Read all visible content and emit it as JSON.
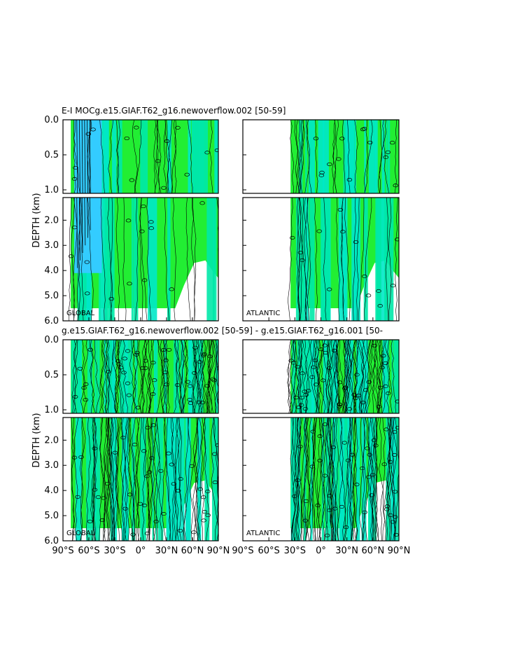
{
  "figure": {
    "title_top": "E-I MOCg.e15.GIAF.T62_g16.newoverflow.002  [50-59]",
    "title_bottom": "g.e15.GIAF.T62_g16.newoverflow.002  [50-59] - g.e15.GIAF.T62_g16.001  [50-"
  },
  "colors": {
    "green": "#22ee33",
    "bright_green": "#33f41f",
    "cyan_green": "#00e8a8",
    "teal": "#00e8c8",
    "light_blue": "#33ccff",
    "contour": "#000000",
    "frame": "#000000"
  },
  "chart_data": [
    {
      "type": "heatmap",
      "panel": "top-left",
      "basin_label": "GLOBAL",
      "ylabel": "DEPTH (km)",
      "upper_ticks": [
        "0.0",
        "0.5",
        "1.0"
      ],
      "lower_ticks": [
        "2.0",
        "3.0",
        "4.0",
        "5.0",
        "6.0"
      ],
      "x_ticks": []
    },
    {
      "type": "heatmap",
      "panel": "top-right",
      "basin_label": "ATLANTIC",
      "upper_ticks": [],
      "lower_ticks": [],
      "x_ticks": []
    },
    {
      "type": "heatmap",
      "panel": "bottom-left",
      "basin_label": "GLOBAL",
      "ylabel": "DEPTH (km)",
      "upper_ticks": [
        "0.0",
        "0.5",
        "1.0"
      ],
      "lower_ticks": [
        "2.0",
        "3.0",
        "4.0",
        "5.0",
        "6.0"
      ],
      "x_ticks": [
        "90°S",
        "60°S",
        "30°S",
        "0°",
        "30°N",
        "60°N",
        "90°N"
      ]
    },
    {
      "type": "heatmap",
      "panel": "bottom-right",
      "basin_label": "ATLANTIC",
      "upper_ticks": [],
      "lower_ticks": [],
      "x_ticks": [
        "90°S",
        "60°S",
        "30°S",
        "0°",
        "30°N",
        "60°N",
        "90°N"
      ]
    }
  ]
}
